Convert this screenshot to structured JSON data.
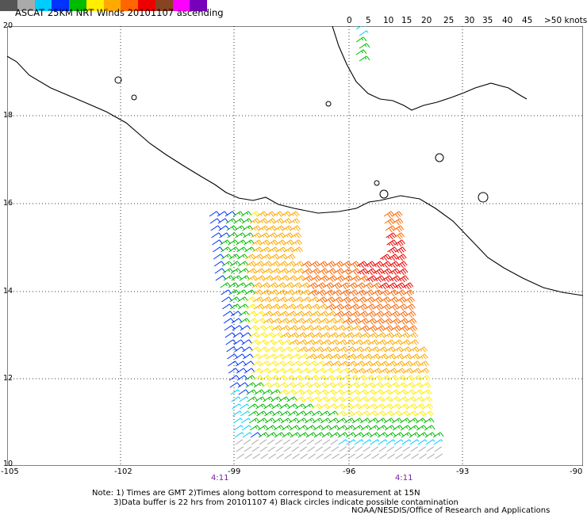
{
  "title": "ASCAT 25KM NRT Winds 20101107 ascending",
  "color_scale": {
    "labels": [
      "0",
      "5",
      "10",
      "15",
      "20",
      "25",
      "30",
      "35",
      "40",
      "45",
      ">50 knots"
    ],
    "colors": [
      "#555555",
      "#aaaaaa",
      "#00ccff",
      "#0033ff",
      "#00bb00",
      "#ffee00",
      "#ffaa00",
      "#ff6600",
      "#ee0000",
      "#884422",
      "#ff00ff",
      "#7700bb"
    ]
  },
  "map": {
    "lat_labels": [
      "20",
      "18",
      "16",
      "14",
      "12",
      "10"
    ],
    "lon_labels": [
      "-105",
      "-102",
      "-99",
      "-96",
      "-93",
      "-90"
    ],
    "time_labels": [
      "4:11",
      "4:11"
    ]
  },
  "notes": [
    "Note: 1) Times are GMT 2)Times along bottom correspond to measurement at 15N",
    "3)Data buffer is 22 hrs from 20101107 4) Black circles indicate possible contamination",
    "NOAA/NESDIS/Office of Research and Applications"
  ]
}
